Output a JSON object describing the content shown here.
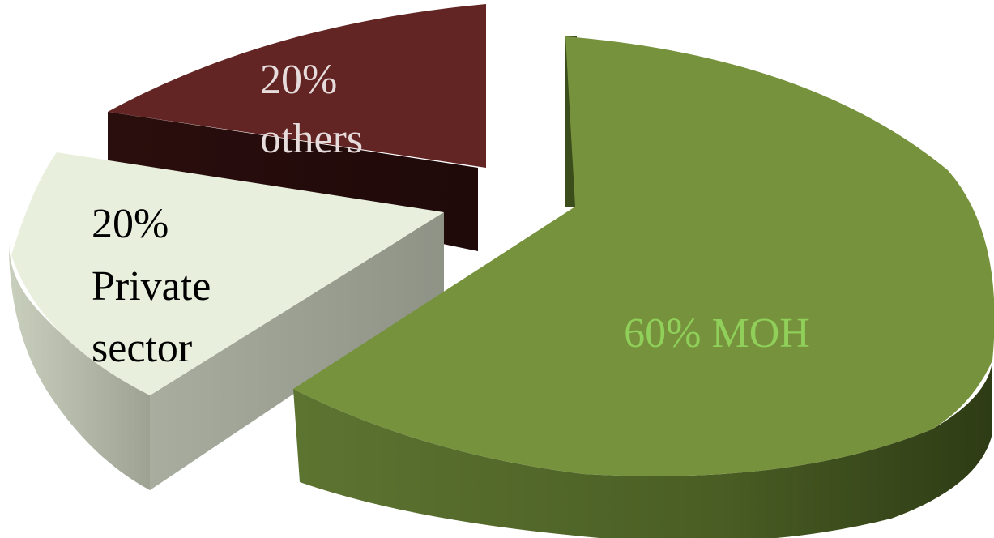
{
  "chart_data": {
    "type": "pie",
    "title": "",
    "slices": [
      {
        "label_lines": [
          "60% MOH"
        ],
        "value": 60,
        "color": "#76923c",
        "label_color": "#8fcf5a"
      },
      {
        "label_lines": [
          "20%",
          "Private",
          "sector"
        ],
        "value": 20,
        "color": "#e9efdd",
        "label_color": "#000000"
      },
      {
        "label_lines": [
          "20%",
          "others"
        ],
        "value": 20,
        "color": "#632523",
        "label_color": "#e6dcdc"
      }
    ],
    "style": "3d-exploded"
  }
}
